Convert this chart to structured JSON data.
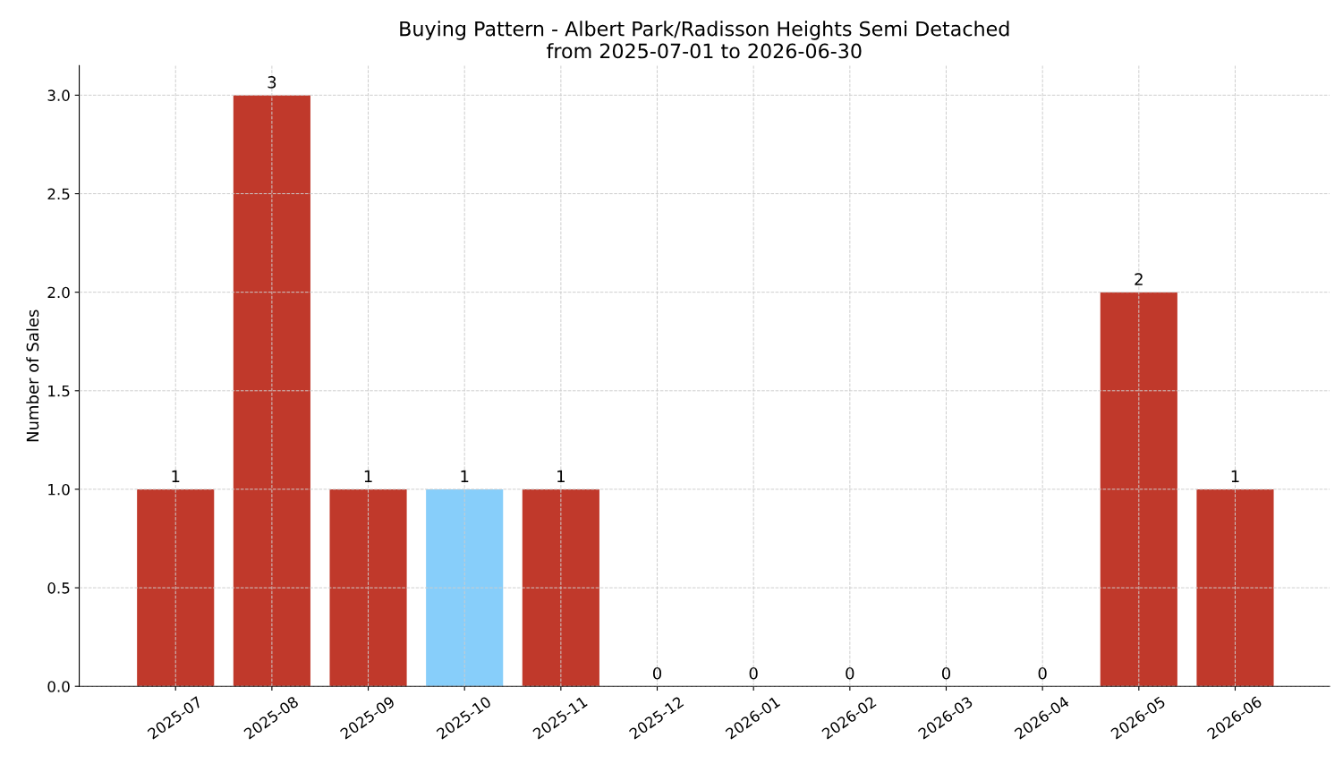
{
  "chart_data": {
    "type": "bar",
    "title": "Buying Pattern - Albert Park/Radisson Heights Semi Detached\nfrom 2025-07-01 to 2026-06-30",
    "ylabel": "Number of Sales",
    "categories": [
      "2025-07",
      "2025-08",
      "2025-09",
      "2025-10",
      "2025-11",
      "2025-12",
      "2026-01",
      "2026-02",
      "2026-03",
      "2026-04",
      "2026-05",
      "2026-06"
    ],
    "values": [
      1,
      3,
      1,
      1,
      1,
      0,
      0,
      0,
      0,
      0,
      2,
      1
    ],
    "colors": [
      "#c0392b",
      "#c0392b",
      "#c0392b",
      "#87cefa",
      "#c0392b",
      "#c0392b",
      "#c0392b",
      "#c0392b",
      "#c0392b",
      "#c0392b",
      "#c0392b",
      "#c0392b"
    ],
    "ylim": [
      0,
      3.15
    ],
    "yticks": [
      {
        "value": 0,
        "label": "0.0"
      },
      {
        "value": 0.5,
        "label": "0.5"
      },
      {
        "value": 1,
        "label": "1.0"
      },
      {
        "value": 1.5,
        "label": "1.5"
      },
      {
        "value": 2,
        "label": "2.0"
      },
      {
        "value": 2.5,
        "label": "2.5"
      },
      {
        "value": 3,
        "label": "3.0"
      }
    ],
    "grid": true,
    "data_labels": true
  }
}
